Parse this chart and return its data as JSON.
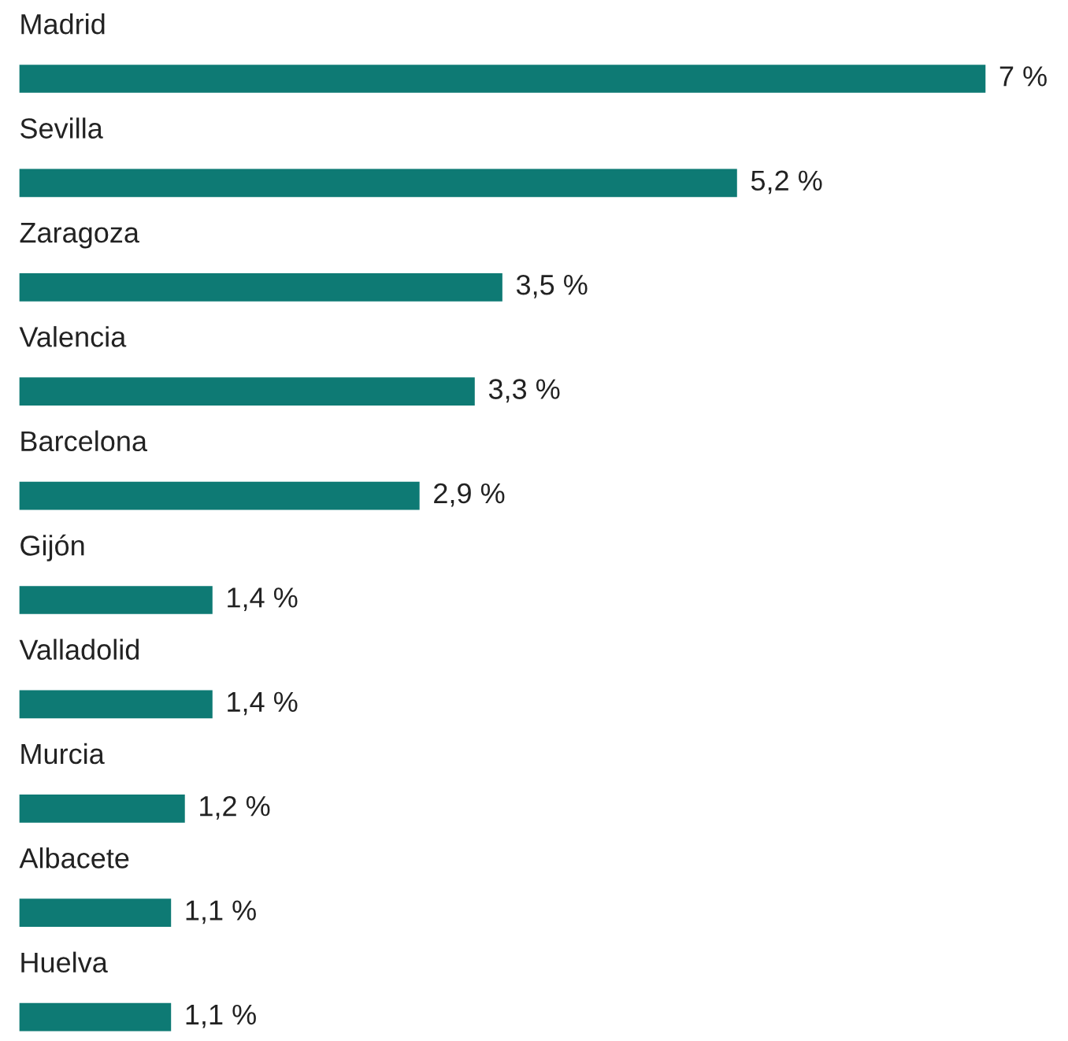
{
  "chart_data": {
    "type": "bar",
    "orientation": "horizontal",
    "categories": [
      "Madrid",
      "Sevilla",
      "Zaragoza",
      "Valencia",
      "Barcelona",
      "Gijón",
      "Valladolid",
      "Murcia",
      "Albacete",
      "Huelva"
    ],
    "values": [
      7,
      5.2,
      3.5,
      3.3,
      2.9,
      1.4,
      1.4,
      1.2,
      1.1,
      1.1
    ],
    "value_labels": [
      "7 %",
      "5,2 %",
      "3,5 %",
      "3,3 %",
      "2,9 %",
      "1,4 %",
      "1,4 %",
      "1,2 %",
      "1,1 %",
      "1,1 %"
    ],
    "color": "#0e7a74"
  }
}
